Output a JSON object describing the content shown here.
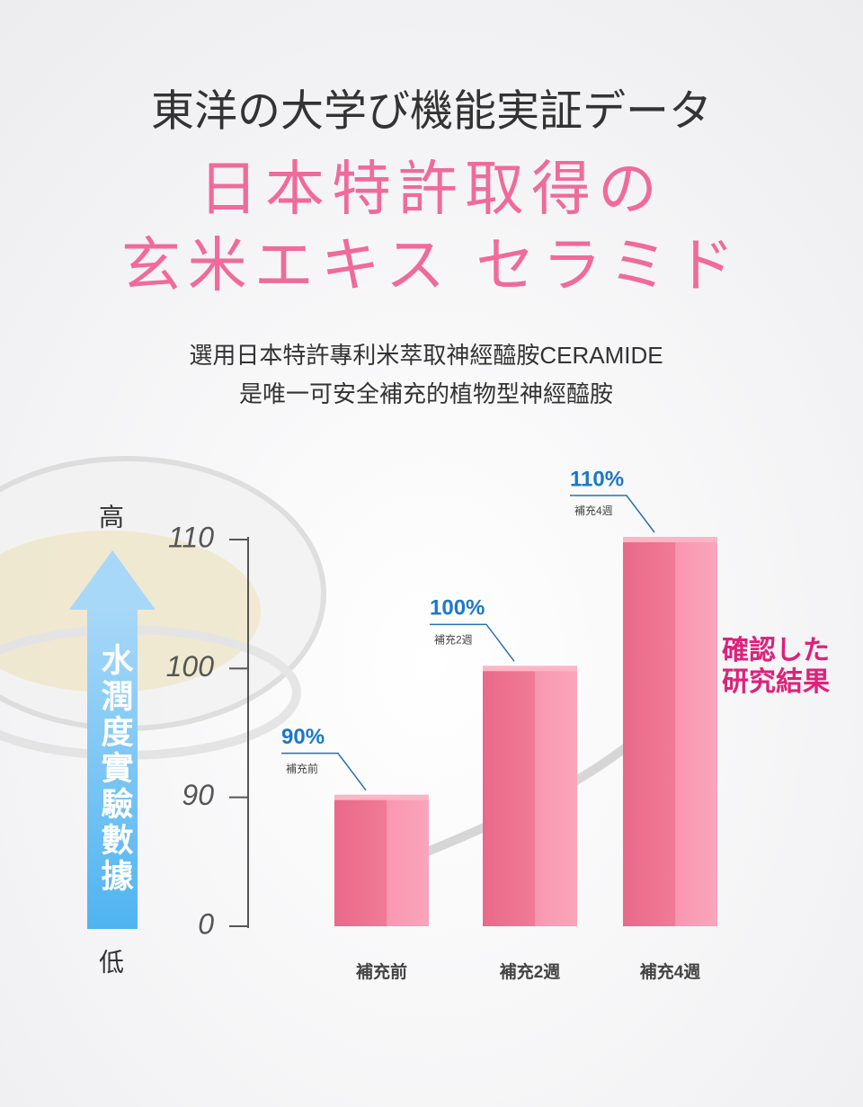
{
  "chart_data": {
    "type": "bar",
    "header": "東洋の大学び機能実証データ",
    "title": [
      "日本特許取得の",
      "玄米エキス セラミド"
    ],
    "subtitle": [
      "選用日本特許專利米萃取神經醯胺CERAMIDE",
      "是唯一可安全補充的植物型神經醯胺"
    ],
    "y_label": "水潤度實驗數據",
    "y_high": "高",
    "y_low": "低",
    "annotation": [
      "確認した",
      "研究結果"
    ],
    "categories": [
      "補充前",
      "補充2週",
      "補充4週"
    ],
    "values": [
      90,
      100,
      110
    ],
    "value_labels": [
      "90%",
      "100%",
      "110%"
    ],
    "color": "#f07b96",
    "label_color": "#1b78c9",
    "ylim": [
      0,
      110
    ],
    "yticks": [
      0,
      90,
      100,
      110
    ]
  }
}
